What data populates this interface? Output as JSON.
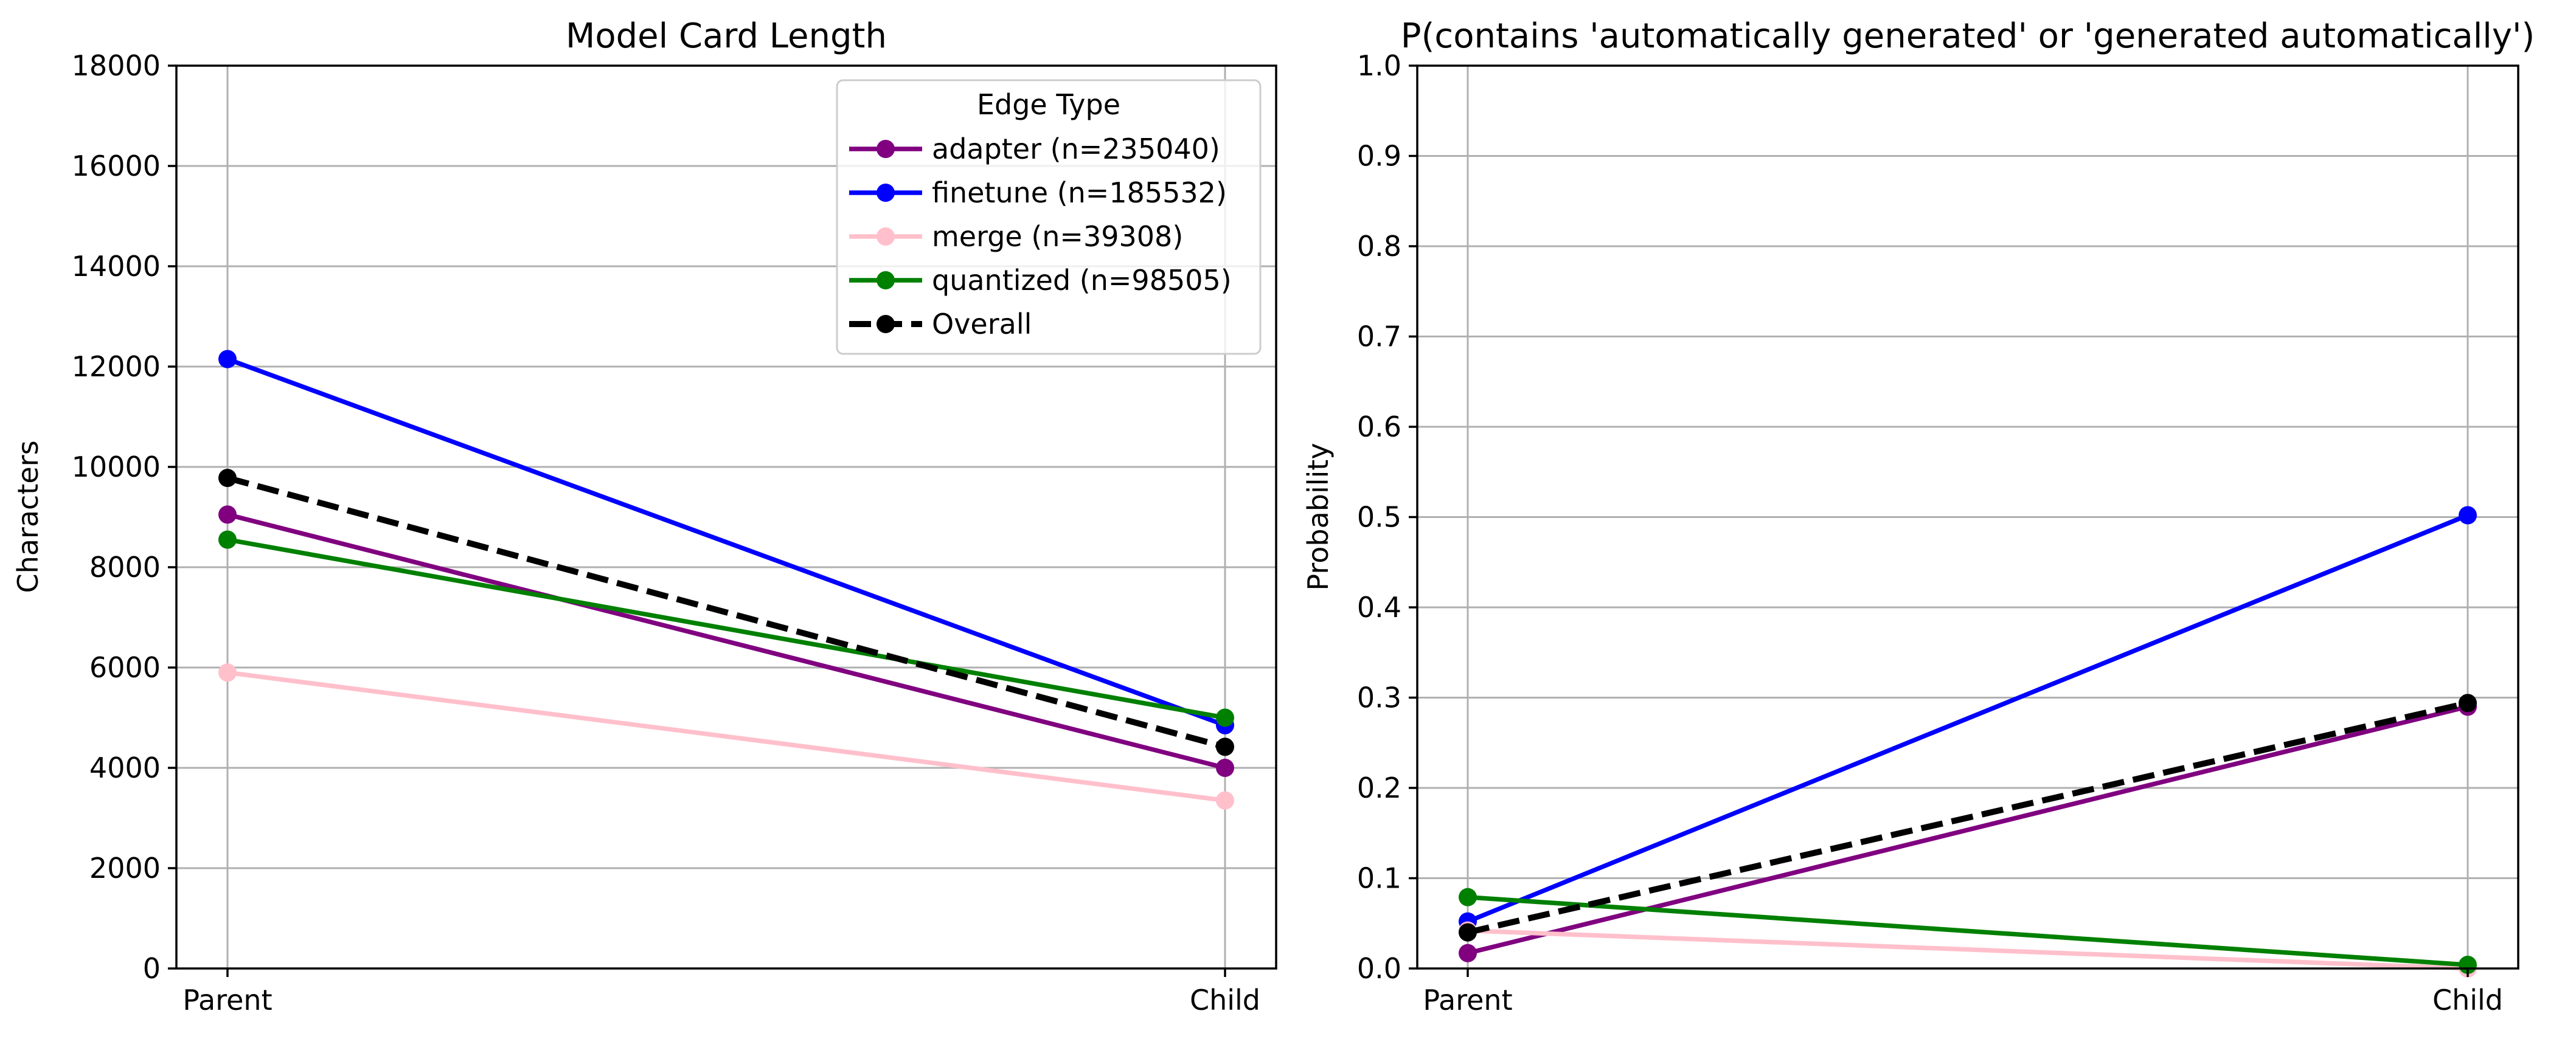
{
  "chart_data": [
    {
      "type": "line",
      "title": "Model Card Length",
      "xlabel": "",
      "ylabel": "Characters",
      "categories": [
        "Parent",
        "Child"
      ],
      "ylim": [
        0,
        18000
      ],
      "yticks": [
        0,
        2000,
        4000,
        6000,
        8000,
        10000,
        12000,
        14000,
        16000,
        18000
      ],
      "ytick_labels": [
        "0",
        "2000",
        "4000",
        "6000",
        "8000",
        "10000",
        "12000",
        "14000",
        "16000",
        "18000"
      ],
      "grid": true,
      "legend": {
        "title": "Edge Type",
        "placement": "top-right",
        "entries": [
          "adapter (n=235040)",
          "finetune (n=185532)",
          "merge (n=39308)",
          "quantized (n=98505)",
          "Overall"
        ]
      },
      "series": [
        {
          "name": "adapter (n=235040)",
          "color": "#800080",
          "dashed": false,
          "values": [
            9050,
            4000
          ]
        },
        {
          "name": "finetune (n=185532)",
          "color": "#0000ff",
          "dashed": false,
          "values": [
            12150,
            4850
          ]
        },
        {
          "name": "merge (n=39308)",
          "color": "#ffc0cb",
          "dashed": false,
          "values": [
            5900,
            3350
          ]
        },
        {
          "name": "quantized (n=98505)",
          "color": "#008000",
          "dashed": false,
          "values": [
            8550,
            5000
          ]
        },
        {
          "name": "Overall",
          "color": "#000000",
          "dashed": true,
          "values": [
            9780,
            4420
          ]
        }
      ]
    },
    {
      "type": "line",
      "title": "P(contains 'automatically generated' or 'generated automatically')",
      "xlabel": "",
      "ylabel": "Probability",
      "categories": [
        "Parent",
        "Child"
      ],
      "ylim": [
        0,
        1
      ],
      "yticks": [
        0,
        0.1,
        0.2,
        0.3,
        0.4,
        0.5,
        0.6,
        0.7,
        0.8,
        0.9,
        1.0
      ],
      "ytick_labels": [
        "0.0",
        "0.1",
        "0.2",
        "0.3",
        "0.4",
        "0.5",
        "0.6",
        "0.7",
        "0.8",
        "0.9",
        "1.0"
      ],
      "grid": true,
      "series": [
        {
          "name": "adapter (n=235040)",
          "color": "#800080",
          "dashed": false,
          "values": [
            0.017,
            0.29
          ]
        },
        {
          "name": "finetune (n=185532)",
          "color": "#0000ff",
          "dashed": false,
          "values": [
            0.052,
            0.502
          ]
        },
        {
          "name": "merge (n=39308)",
          "color": "#ffc0cb",
          "dashed": false,
          "values": [
            0.042,
            0.0
          ]
        },
        {
          "name": "quantized (n=98505)",
          "color": "#008000",
          "dashed": false,
          "values": [
            0.079,
            0.004
          ]
        },
        {
          "name": "Overall",
          "color": "#000000",
          "dashed": true,
          "values": [
            0.04,
            0.294
          ]
        }
      ]
    }
  ]
}
